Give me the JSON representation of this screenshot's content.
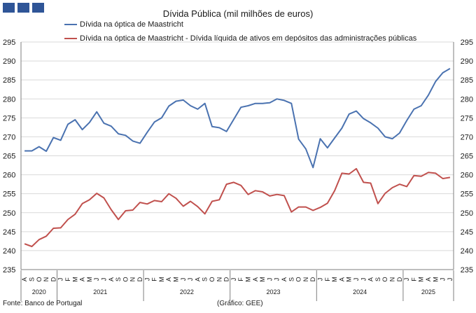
{
  "header": {
    "title": "Dívida Pública (mil milhões de euros)"
  },
  "colors": {
    "brand": "#2f5597",
    "series1": "#4a72b0",
    "series2": "#c0504d",
    "grid": "#d9d9d9",
    "axis": "#7f7f7f"
  },
  "footer": {
    "source": "Fonte: Banco de Portugal",
    "credit": "(Gráfico: GEE)"
  },
  "chart_data": {
    "type": "line",
    "title": "Dívida Pública (mil milhões de euros)",
    "ylim": [
      235,
      295
    ],
    "yticks": [
      235,
      240,
      245,
      250,
      255,
      260,
      265,
      270,
      275,
      280,
      285,
      290,
      295
    ],
    "grid": true,
    "legend_position": "top-left",
    "months": [
      "A",
      "S",
      "O",
      "N",
      "D",
      "J",
      "F",
      "M",
      "A",
      "M",
      "J",
      "J",
      "A",
      "S",
      "O",
      "N",
      "D",
      "J",
      "F",
      "M",
      "A",
      "M",
      "J",
      "J",
      "A",
      "S",
      "O",
      "N",
      "D",
      "J",
      "F",
      "M",
      "A",
      "M",
      "J",
      "J",
      "A",
      "S",
      "O",
      "N",
      "D",
      "J",
      "F",
      "M",
      "A",
      "M",
      "J",
      "J",
      "A",
      "S",
      "O",
      "N",
      "D",
      "J",
      "F",
      "M",
      "A",
      "M",
      "J",
      "J"
    ],
    "years": [
      {
        "label": "2020",
        "from": 0,
        "to": 4
      },
      {
        "label": "2021",
        "from": 5,
        "to": 16
      },
      {
        "label": "2022",
        "from": 17,
        "to": 28
      },
      {
        "label": "2023",
        "from": 29,
        "to": 40
      },
      {
        "label": "2024",
        "from": 41,
        "to": 52
      },
      {
        "label": "2025",
        "from": 53,
        "to": 59
      }
    ],
    "series": [
      {
        "name": "Dívida na óptica de Maastricht",
        "values": [
          266.3,
          266.3,
          267.4,
          266.2,
          269.8,
          269.1,
          273.3,
          274.5,
          271.9,
          273.8,
          276.6,
          273.6,
          272.8,
          270.8,
          270.4,
          268.9,
          268.3,
          271.2,
          273.9,
          275.0,
          278.1,
          279.4,
          279.7,
          278.2,
          277.3,
          278.8,
          272.7,
          272.4,
          271.4,
          274.6,
          277.8,
          278.2,
          278.8,
          278.8,
          279.0,
          280.0,
          279.6,
          278.8,
          269.4,
          266.8,
          261.9,
          269.5,
          267.1,
          269.7,
          272.3,
          276.0,
          276.8,
          274.8,
          273.7,
          272.3,
          270.0,
          269.5,
          271.0,
          274.3,
          277.3,
          278.2,
          281.0,
          284.6,
          286.9,
          288.0
        ]
      },
      {
        "name": "Dívida na óptica de Maastricht - Dívida líquida de ativos em depósitos das administrações públicas",
        "values": [
          241.8,
          241.1,
          242.9,
          243.8,
          245.9,
          246.0,
          248.2,
          249.6,
          252.4,
          253.4,
          255.1,
          253.9,
          250.8,
          248.2,
          250.5,
          250.7,
          252.7,
          252.3,
          253.2,
          252.9,
          255.0,
          253.8,
          251.7,
          253.0,
          251.6,
          249.7,
          253.0,
          253.4,
          257.5,
          258.0,
          257.2,
          254.8,
          255.8,
          255.5,
          254.4,
          254.8,
          254.5,
          250.2,
          251.5,
          251.5,
          250.6,
          251.4,
          252.5,
          255.8,
          260.4,
          260.2,
          261.6,
          258.0,
          257.8,
          252.4,
          255.1,
          256.6,
          257.5,
          256.9,
          259.8,
          259.6,
          260.6,
          260.4,
          259.0,
          259.3
        ]
      }
    ]
  }
}
